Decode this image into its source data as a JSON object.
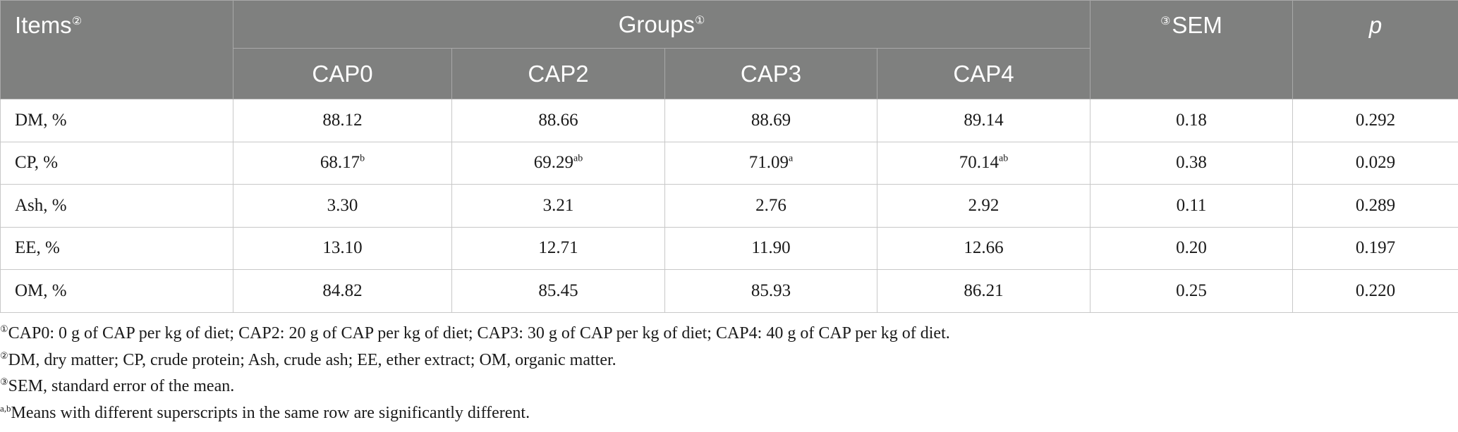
{
  "table": {
    "header": {
      "items": "Items",
      "items_mark": "②",
      "groups": "Groups",
      "groups_mark": "①",
      "sem_mark": "③",
      "sem": "SEM",
      "p": "p",
      "group_columns": [
        "CAP0",
        "CAP2",
        "CAP3",
        "CAP4"
      ]
    },
    "rows": [
      {
        "label": "DM, %",
        "values": [
          {
            "v": "88.12",
            "s": ""
          },
          {
            "v": "88.66",
            "s": ""
          },
          {
            "v": "88.69",
            "s": ""
          },
          {
            "v": "89.14",
            "s": ""
          }
        ],
        "sem": "0.18",
        "p": "0.292"
      },
      {
        "label": "CP, %",
        "values": [
          {
            "v": "68.17",
            "s": "b"
          },
          {
            "v": "69.29",
            "s": "ab"
          },
          {
            "v": "71.09",
            "s": "a"
          },
          {
            "v": "70.14",
            "s": "ab"
          }
        ],
        "sem": "0.38",
        "p": "0.029"
      },
      {
        "label": "Ash, %",
        "values": [
          {
            "v": "3.30",
            "s": ""
          },
          {
            "v": "3.21",
            "s": ""
          },
          {
            "v": "2.76",
            "s": ""
          },
          {
            "v": "2.92",
            "s": ""
          }
        ],
        "sem": "0.11",
        "p": "0.289"
      },
      {
        "label": "EE, %",
        "values": [
          {
            "v": "13.10",
            "s": ""
          },
          {
            "v": "12.71",
            "s": ""
          },
          {
            "v": "11.90",
            "s": ""
          },
          {
            "v": "12.66",
            "s": ""
          }
        ],
        "sem": "0.20",
        "p": "0.197"
      },
      {
        "label": "OM, %",
        "values": [
          {
            "v": "84.82",
            "s": ""
          },
          {
            "v": "85.45",
            "s": ""
          },
          {
            "v": "85.93",
            "s": ""
          },
          {
            "v": "86.21",
            "s": ""
          }
        ],
        "sem": "0.25",
        "p": "0.220"
      }
    ]
  },
  "footnotes": [
    {
      "mark": "①",
      "text": "CAP0: 0 g of CAP per kg of diet; CAP2: 20 g of CAP per kg of diet; CAP3: 30 g of CAP per kg of diet; CAP4: 40 g of CAP per kg of diet."
    },
    {
      "mark": "②",
      "text": "DM, dry matter; CP, crude protein; Ash, crude ash; EE, ether extract; OM, organic matter."
    },
    {
      "mark": "③",
      "text": "SEM, standard error of the mean."
    },
    {
      "mark": "a,b",
      "text": "Means with different superscripts in the same row are significantly different."
    }
  ],
  "colors": {
    "header_bg": "#7f807f",
    "header_text": "#ffffff",
    "grid_line": "#c8c8c8",
    "body_text": "#1a1a1a"
  }
}
